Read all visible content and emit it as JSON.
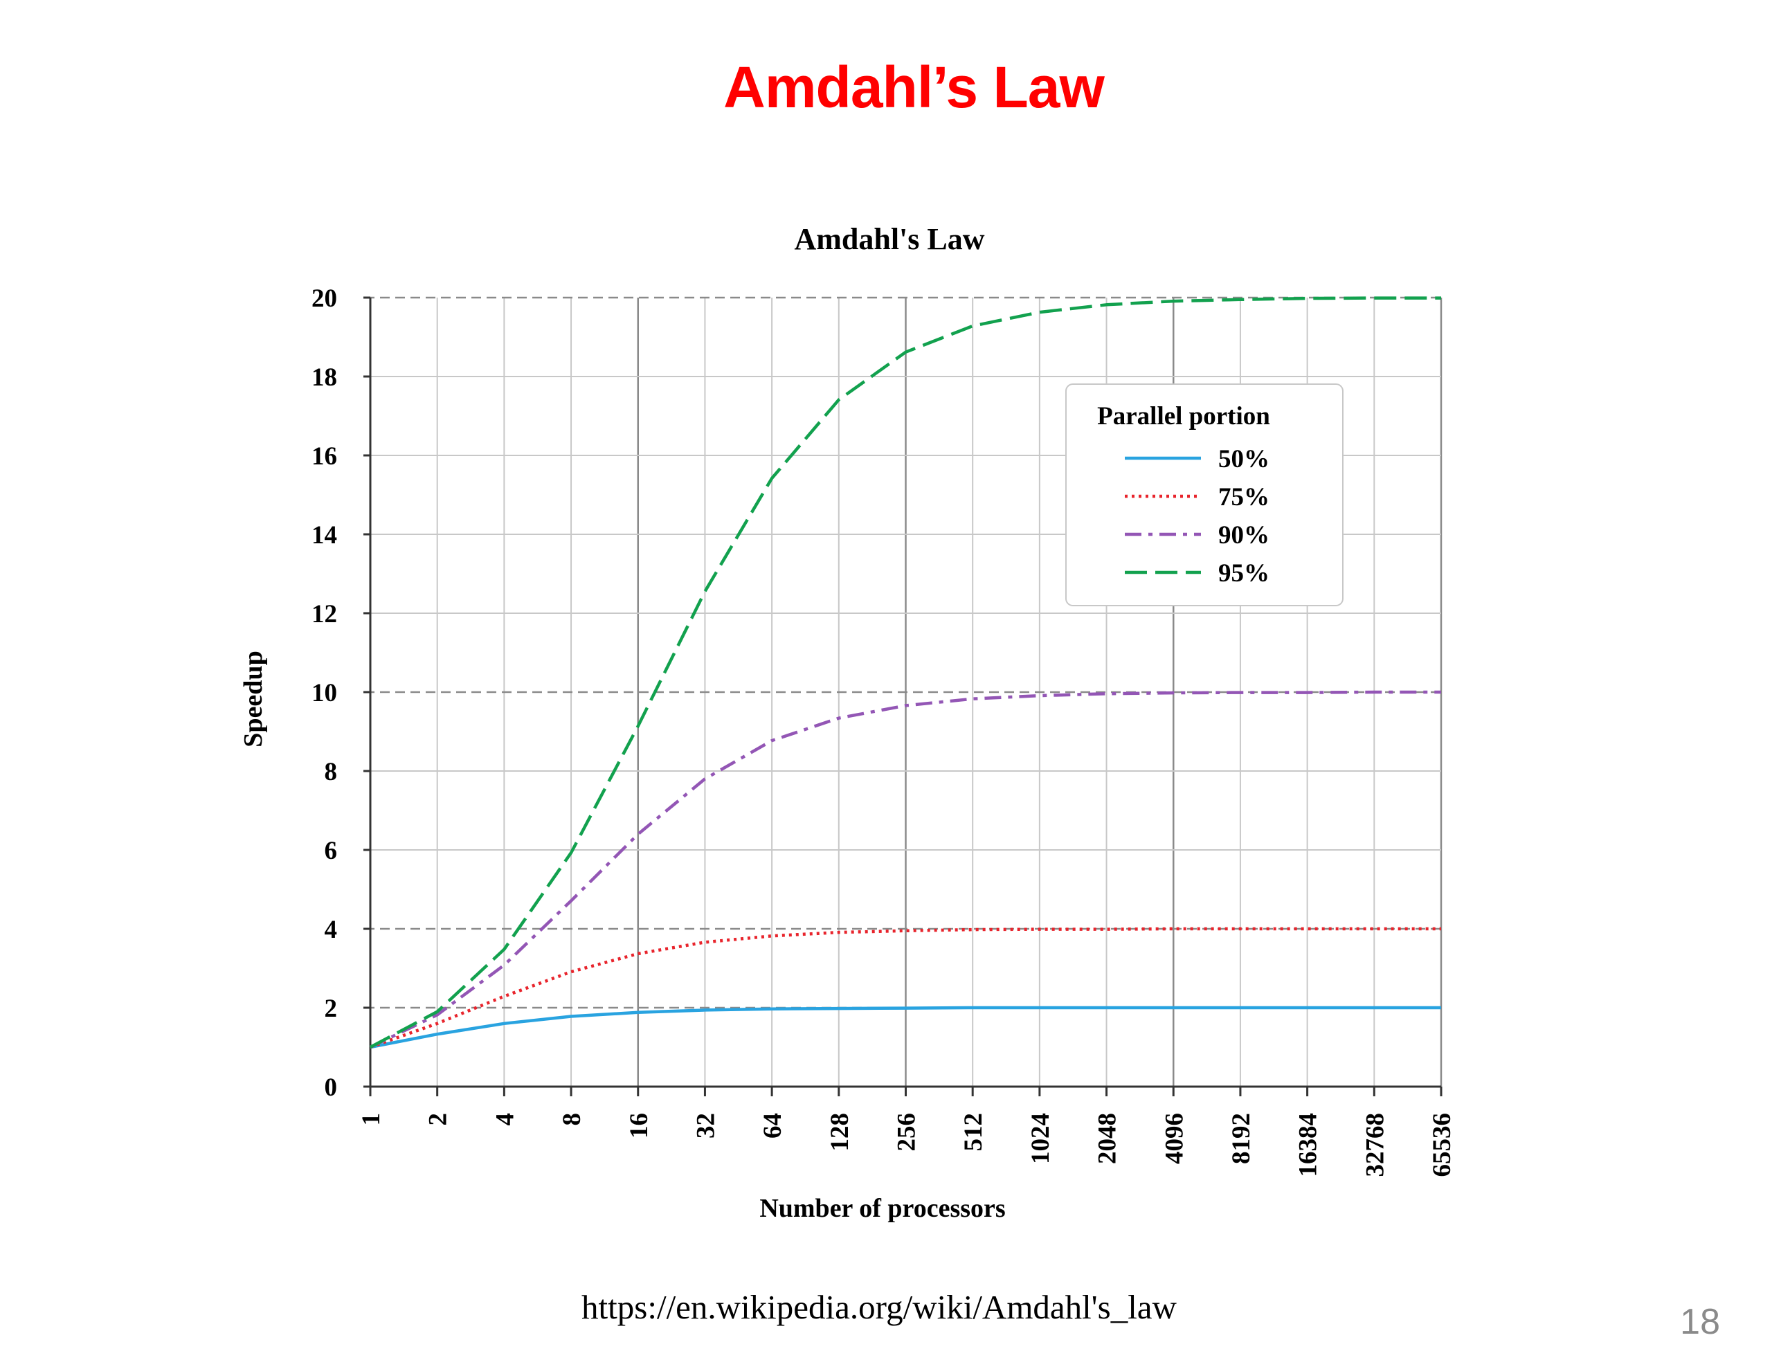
{
  "slide": {
    "title": "Amdahl’s Law",
    "source_url": "https://en.wikipedia.org/wiki/Amdahl's_law",
    "page_number": "18"
  },
  "colors": {
    "slide_title": "#ff0000",
    "series_50": "#29a3e0",
    "series_75": "#e8242c",
    "series_90": "#9356b5",
    "series_95": "#12a14e"
  },
  "chart_data": {
    "type": "line",
    "title": "Amdahl's Law",
    "xlabel": "Number of processors",
    "ylabel": "Speedup",
    "x_scale": "log2",
    "x": [
      "1",
      "2",
      "4",
      "8",
      "16",
      "32",
      "64",
      "128",
      "256",
      "512",
      "1024",
      "2048",
      "4096",
      "8192",
      "16384",
      "32768",
      "65536"
    ],
    "ylim": [
      0,
      20
    ],
    "yticks": [
      0,
      2,
      4,
      6,
      8,
      10,
      12,
      14,
      16,
      18,
      20
    ],
    "grid": true,
    "legend": {
      "title": "Parallel portion",
      "position": "top-right"
    },
    "series": [
      {
        "name": "50%",
        "style": "solid",
        "color": "#29a3e0",
        "values": [
          1.0,
          1.33,
          1.6,
          1.78,
          1.88,
          1.94,
          1.97,
          1.98,
          1.99,
          2.0,
          2.0,
          2.0,
          2.0,
          2.0,
          2.0,
          2.0,
          2.0
        ]
      },
      {
        "name": "75%",
        "style": "dotted",
        "color": "#e8242c",
        "values": [
          1.0,
          1.6,
          2.29,
          2.91,
          3.37,
          3.66,
          3.82,
          3.91,
          3.95,
          3.98,
          3.99,
          3.99,
          4.0,
          4.0,
          4.0,
          4.0,
          4.0
        ]
      },
      {
        "name": "90%",
        "style": "dashdot",
        "color": "#9356b5",
        "values": [
          1.0,
          1.82,
          3.08,
          4.71,
          6.4,
          7.8,
          8.77,
          9.34,
          9.66,
          9.83,
          9.91,
          9.96,
          9.98,
          9.99,
          9.99,
          10.0,
          10.0
        ]
      },
      {
        "name": "95%",
        "style": "dashed",
        "color": "#12a14e",
        "values": [
          1.0,
          1.9,
          3.48,
          5.93,
          9.14,
          12.55,
          15.42,
          17.41,
          18.62,
          19.28,
          19.63,
          19.82,
          19.91,
          19.95,
          19.98,
          19.99,
          19.99
        ]
      }
    ]
  }
}
